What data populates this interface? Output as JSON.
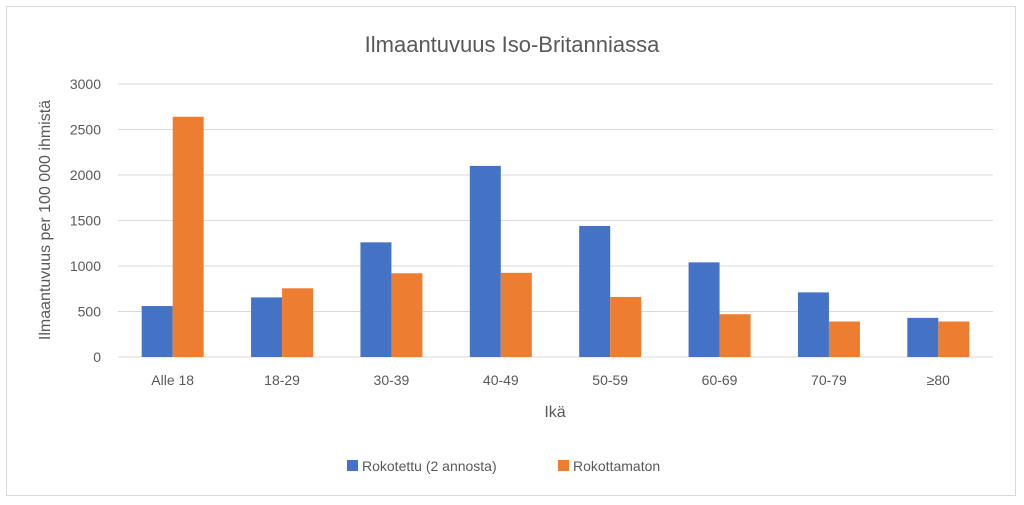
{
  "chart_data": {
    "type": "bar",
    "title": "Ilmaantuvuus Iso-Britanniassa",
    "xlabel": "Ikä",
    "ylabel": "Ilmaantuvuus per 100 000 ihmistä",
    "ylim": [
      0,
      3000
    ],
    "yticks": [
      "0",
      "500",
      "1000",
      "1500",
      "2000",
      "2500",
      "3000"
    ],
    "grid": true,
    "legend_position": "bottom",
    "categories": [
      "Alle 18",
      "18-29",
      "30-39",
      "40-49",
      "50-59",
      "60-69",
      "70-79",
      "≥80"
    ],
    "series": [
      {
        "name": "Rokotettu (2 annosta)",
        "color": "#4472c4",
        "values": [
          560,
          655,
          1260,
          2100,
          1440,
          1040,
          710,
          430
        ]
      },
      {
        "name": "Rokottamaton",
        "color": "#ed7d31",
        "values": [
          2640,
          755,
          920,
          925,
          660,
          470,
          390,
          390
        ]
      }
    ]
  }
}
